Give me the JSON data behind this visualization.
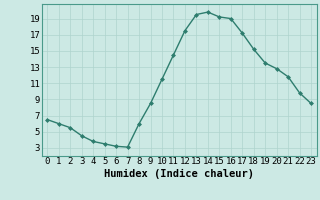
{
  "x": [
    0,
    1,
    2,
    3,
    4,
    5,
    6,
    7,
    8,
    9,
    10,
    11,
    12,
    13,
    14,
    15,
    16,
    17,
    18,
    19,
    20,
    21,
    22,
    23
  ],
  "y": [
    6.5,
    6.0,
    5.5,
    4.5,
    3.8,
    3.5,
    3.2,
    3.1,
    6.0,
    8.5,
    11.5,
    14.5,
    17.5,
    19.5,
    19.8,
    19.2,
    19.0,
    17.2,
    15.2,
    13.5,
    12.8,
    11.8,
    9.8,
    8.5
  ],
  "line_color": "#2e7d6e",
  "marker": "D",
  "marker_size": 2.0,
  "bg_color": "#cce9e4",
  "grid_color": "#afd4ce",
  "xlabel": "Humidex (Indice chaleur)",
  "xlim": [
    -0.5,
    23.5
  ],
  "ylim": [
    2.0,
    20.8
  ],
  "yticks": [
    3,
    5,
    7,
    9,
    11,
    13,
    15,
    17,
    19
  ],
  "xticks": [
    0,
    1,
    2,
    3,
    4,
    5,
    6,
    7,
    8,
    9,
    10,
    11,
    12,
    13,
    14,
    15,
    16,
    17,
    18,
    19,
    20,
    21,
    22,
    23
  ],
  "xlabel_fontsize": 7.5,
  "tick_fontsize": 6.5,
  "linewidth": 1.0
}
